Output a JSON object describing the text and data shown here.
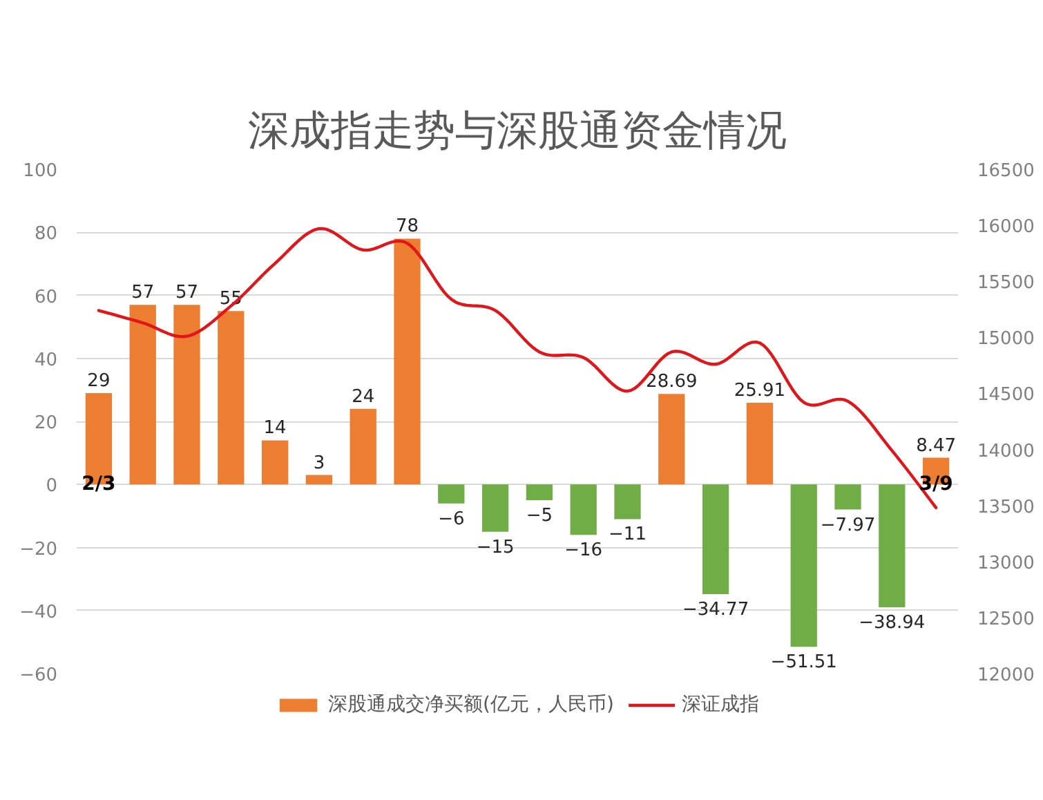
{
  "chart_data": {
    "type": "bar",
    "title": "深成指走势与深股通资金情况",
    "categories": [
      "2/3",
      null,
      null,
      null,
      null,
      null,
      null,
      null,
      null,
      null,
      null,
      null,
      null,
      null,
      null,
      null,
      null,
      null,
      null,
      "3/9"
    ],
    "series": [
      {
        "name": "深股通成交净买额(亿元，人民币)",
        "color": "#ed7d31",
        "colors": [
          "#ed7d31",
          "#ed7d31",
          "#ed7d31",
          "#ed7d31",
          "#ed7d31",
          "#ed7d31",
          "#ed7d31",
          "#ed7d31",
          "#70ad47",
          "#70ad47",
          "#70ad47",
          "#70ad47",
          "#70ad47",
          "#ed7d31",
          "#70ad47",
          "#ed7d31",
          "#70ad47",
          "#70ad47",
          "#70ad47",
          "#ed7d31"
        ],
        "values": [
          29,
          57,
          57,
          55,
          14,
          3,
          24,
          78,
          -6,
          -15,
          -5,
          -16,
          -11,
          28.69,
          -34.77,
          25.91,
          -51.51,
          -7.97,
          -38.94,
          8.47
        ],
        "value_labels": [
          "29",
          "57",
          "57",
          "55",
          "14",
          "3",
          "24",
          "78",
          "−6",
          "−15",
          "−5",
          "−16",
          "−11",
          "28.69",
          "−34.77",
          "25.91",
          "−51.51",
          "−7.97",
          "−38.94",
          "8.47"
        ]
      },
      {
        "name": "深证成指",
        "type": "line",
        "axis": "y2",
        "color": "#e0161b",
        "values": [
          15240,
          15130,
          15010,
          15280,
          15660,
          15970,
          15780,
          15840,
          15340,
          15240,
          14870,
          14820,
          14520,
          14870,
          14760,
          14950,
          14420,
          14430,
          13990,
          13480
        ]
      }
    ],
    "ylim": [
      -60,
      100
    ],
    "yticks": [
      -60,
      -40,
      -20,
      0,
      20,
      40,
      60,
      80,
      100
    ],
    "y2lim": [
      12000,
      16500
    ],
    "y2ticks": [
      12000,
      12500,
      13000,
      13500,
      14000,
      14500,
      15000,
      15500,
      16000,
      16500
    ],
    "grid": "y",
    "legend": "bottom"
  }
}
